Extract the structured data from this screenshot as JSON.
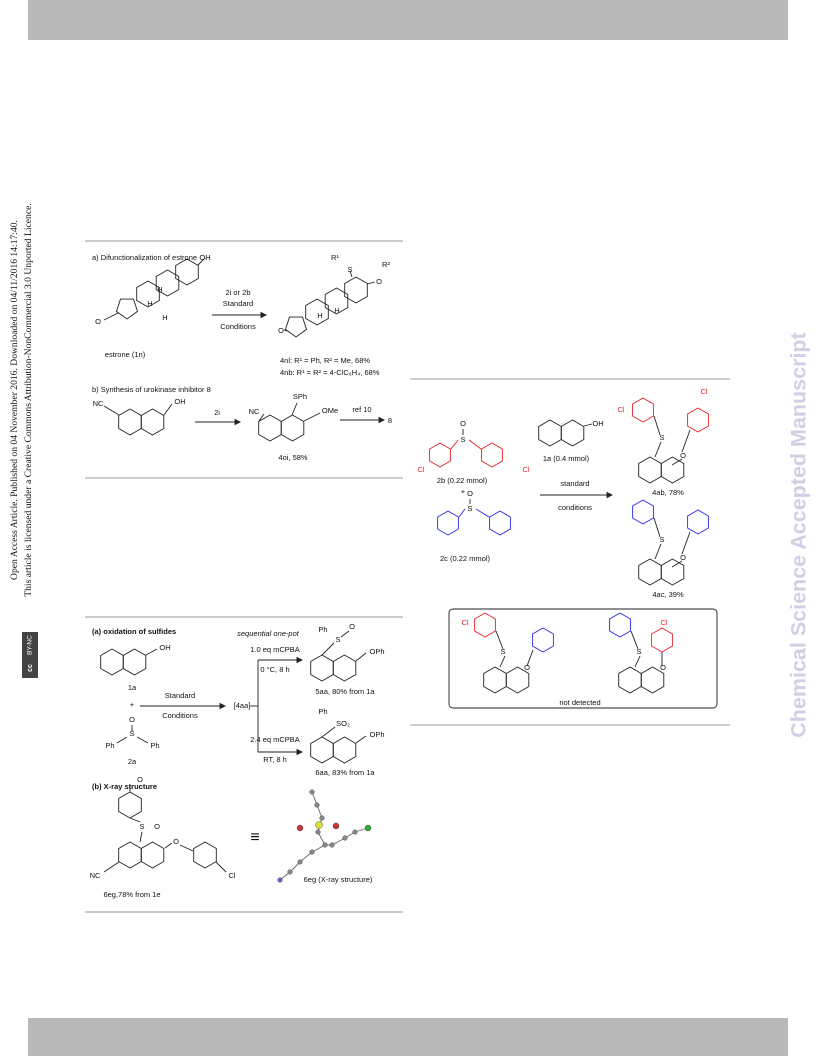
{
  "side_notice": {
    "line1": "Open Access Article. Published on 04 November 2016. Downloaded on 04/11/2016 14:17:40.",
    "line2": "This article is licensed under a Creative Commons Attribution-NonCommercial 3.0 Unported Licence.",
    "badge_cc": "cc",
    "badge": "BY-NC"
  },
  "watermark": "Chemical Science Accepted Manuscript",
  "scheme_estrone": {
    "labels": [
      "a) Difunctionalization of estrone",
      "OH",
      "H",
      "H",
      "H",
      "O",
      "estrone (1n)",
      "2i or 2b",
      "Standard",
      "Conditions",
      "R¹",
      "S",
      "O",
      "R²",
      "H",
      "H",
      "O",
      "4nl: R¹ = Ph, R² = Me, 68%",
      "4nb: R¹ = R² = 4-ClC₆H₄, 68%",
      "b) Synthesis of urokinase inhibitor 8",
      "NC",
      "OH",
      "2i",
      "SPh",
      "NC",
      "OMe",
      "4oi, 58%",
      "ref 10",
      "8"
    ]
  },
  "scheme_selectivity": {
    "labels": [
      "Cl",
      "S",
      "O",
      "Cl",
      "2b (0.22 mmol)",
      "+",
      "O",
      "S",
      "2c (0.22 mmol)",
      "OH",
      "1a (0.4 mmol)",
      "standard",
      "conditions",
      "Cl",
      "S",
      "Cl",
      "O",
      "4ab, 78%",
      "S",
      "O",
      "4ac, 39%",
      "Cl",
      "S",
      "O",
      "Cl",
      "S",
      "O",
      "not detected"
    ]
  },
  "scheme_oxidation": {
    "labels": [
      "(a) oxidation of sulfides",
      "sequential one-pot",
      "OH",
      "1a",
      "+",
      "O",
      "S",
      "Ph",
      "Ph",
      "2a",
      "Standard",
      "Conditions",
      "[4aa]",
      "1.0 eq mCPBA",
      "0 °C, 8 h",
      "Ph",
      "S",
      "O",
      "OPh",
      "5aa, 80% from 1a",
      "2.4 eq mCPBA",
      "RT, 8 h",
      "Ph",
      "SO₂",
      "OPh",
      "6aa, 83% from 1a",
      "(b) X-ray structure",
      "O",
      "S",
      "O",
      "O",
      "NC",
      "Cl",
      "6eg,78% from 1e",
      "≡",
      "6eg (X-ray structure)"
    ]
  }
}
